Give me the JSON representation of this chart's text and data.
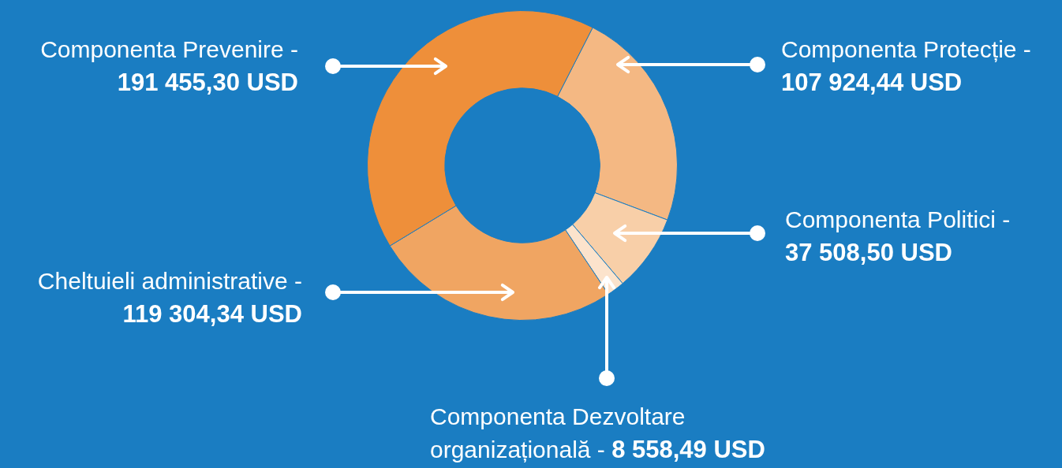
{
  "chart_data": {
    "type": "donut",
    "categories": [
      "Componenta Protecție -",
      "Componenta Politici -",
      "Componenta Dezvoltare organizațională -",
      "Cheltuieli administrative -",
      "Componenta Prevenire -"
    ],
    "values": [
      107924.44,
      37508.5,
      8558.49,
      119304.34,
      191455.3
    ],
    "value_labels": [
      "107 924,44 USD",
      "37 508,50 USD",
      "8 558,49 USD",
      "119 304,34 USD",
      "191 455,30 USD"
    ],
    "colors": [
      "#f4b883",
      "#f8cfa8",
      "#fce3cc",
      "#f0a562",
      "#ee8f3a"
    ]
  }
}
